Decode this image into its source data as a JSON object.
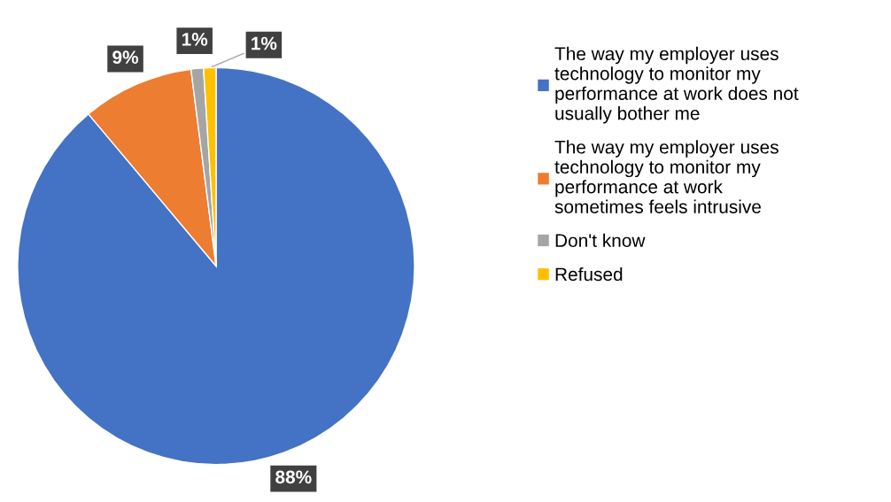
{
  "chart_data": {
    "type": "pie",
    "categories": [
      "The way my employer uses technology to monitor my performance at work does not usually bother me",
      "The way my employer uses technology to monitor my performance at work sometimes feels intrusive",
      "Don't know",
      "Refused"
    ],
    "values": [
      88,
      9,
      1,
      1
    ],
    "colors": [
      "#4472c4",
      "#ed7d31",
      "#a5a5a5",
      "#ffc000"
    ],
    "value_labels": [
      "88%",
      "9%",
      "1%",
      "1%"
    ],
    "legend": "right"
  }
}
